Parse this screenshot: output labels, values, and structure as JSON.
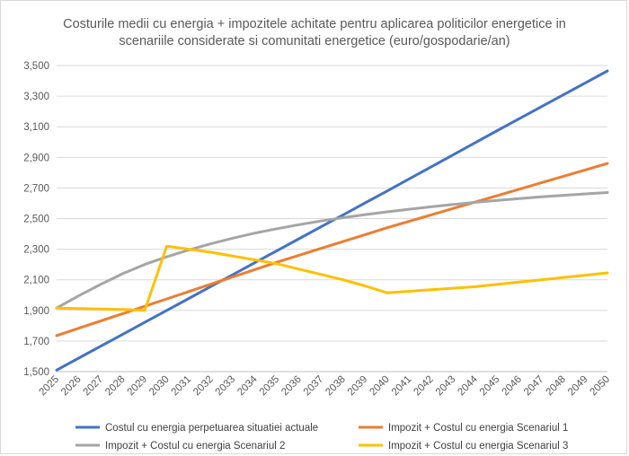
{
  "chart_data": {
    "type": "line",
    "title_lines": [
      "Costurile medii cu energia + impozitele achitate pentru aplicarea politicilor energetice in",
      "scenariile considerate si comunitati energetice (euro/gospodarie/an)"
    ],
    "x": [
      2025,
      2026,
      2027,
      2028,
      2029,
      2030,
      2031,
      2032,
      2033,
      2034,
      2035,
      2036,
      2037,
      2038,
      2039,
      2040,
      2041,
      2042,
      2043,
      2044,
      2045,
      2046,
      2047,
      2048,
      2049,
      2050
    ],
    "ylim": [
      1500,
      3500
    ],
    "yticks": [
      1500,
      1700,
      1900,
      2100,
      2300,
      2500,
      2700,
      2900,
      3100,
      3300,
      3500
    ],
    "ytick_labels": [
      "1,500",
      "1,700",
      "1,900",
      "2,100",
      "2,300",
      "2,500",
      "2,700",
      "2,900",
      "3,100",
      "3,300",
      "3,500"
    ],
    "grid": true,
    "legend_position": "bottom",
    "series": [
      {
        "name": "Costul cu energia perpetuarea situatiei actuale",
        "color": "#4472C4",
        "values": [
          1510,
          1588,
          1666,
          1744,
          1822,
          1900,
          1978,
          2056,
          2134,
          2212,
          2290,
          2368,
          2446,
          2524,
          2602,
          2680,
          2759,
          2838,
          2917,
          2996,
          3075,
          3153,
          3231,
          3309,
          3387,
          3465
        ]
      },
      {
        "name": "Impozit + Costul cu energia Scenariul 1",
        "color": "#ED7D31",
        "values": [
          1735,
          1783,
          1831,
          1879,
          1927,
          1975,
          2023,
          2071,
          2119,
          2167,
          2215,
          2260,
          2305,
          2350,
          2395,
          2440,
          2482,
          2524,
          2566,
          2608,
          2650,
          2692,
          2734,
          2776,
          2818,
          2860
        ]
      },
      {
        "name": "Impozit + Costul cu energia Scenariul 2",
        "color": "#A5A5A5",
        "values": [
          1915,
          1995,
          2070,
          2140,
          2200,
          2250,
          2295,
          2335,
          2372,
          2405,
          2434,
          2460,
          2484,
          2506,
          2526,
          2544,
          2561,
          2577,
          2592,
          2606,
          2619,
          2631,
          2642,
          2652,
          2661,
          2670
        ]
      },
      {
        "name": "Impozit + Costul cu energia Scenariul 3",
        "color": "#FFC000",
        "values": [
          1915,
          1912,
          1909,
          1906,
          1900,
          2320,
          2300,
          2280,
          2255,
          2230,
          2205,
          2170,
          2135,
          2100,
          2060,
          2015,
          2025,
          2035,
          2045,
          2055,
          2070,
          2085,
          2100,
          2115,
          2130,
          2145
        ]
      }
    ]
  }
}
